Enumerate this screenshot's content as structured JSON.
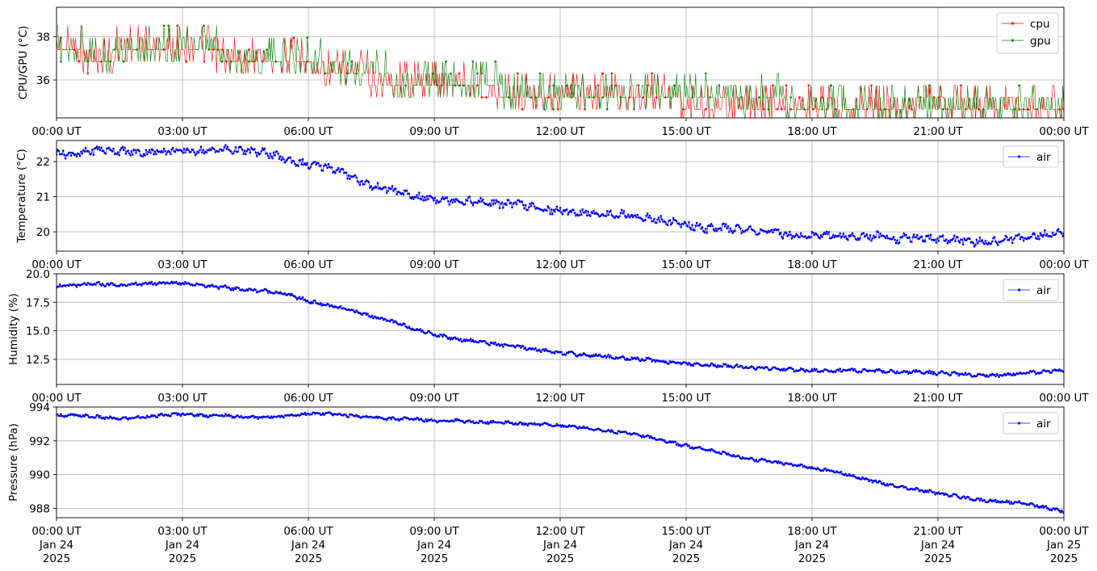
{
  "chart_data": [
    {
      "type": "line",
      "ylabel": "CPU/GPU (°C)",
      "x_ticks": [
        "00:00 UT",
        "03:00 UT",
        "06:00 UT",
        "09:00 UT",
        "12:00 UT",
        "15:00 UT",
        "18:00 UT",
        "21:00 UT",
        "00:00 UT"
      ],
      "y_ticks": [
        "36",
        "38"
      ],
      "y_tick_values": [
        36,
        38
      ],
      "ylim": [
        34.25,
        39.35
      ],
      "xlim_hours": [
        0,
        24
      ],
      "grid": true,
      "legend": "top-right",
      "series": [
        {
          "name": "cpu",
          "color": "#ff0000",
          "x_hours": [
            0,
            0.5,
            1,
            1.5,
            2,
            2.5,
            3,
            3.5,
            4,
            4.5,
            5,
            5.5,
            6,
            6.5,
            7,
            7.5,
            8,
            8.5,
            9,
            9.5,
            10,
            10.5,
            11,
            11.5,
            12,
            12.5,
            13,
            13.5,
            14,
            14.5,
            15,
            15.5,
            16,
            16.5,
            17,
            17.5,
            18,
            18.5,
            19,
            19.5,
            20,
            20.5,
            21,
            21.5,
            22,
            22.5,
            23,
            23.5,
            24
          ],
          "values": [
            37.2,
            37.2,
            36.8,
            37.2,
            37.2,
            37.2,
            37.3,
            37.2,
            37.0,
            36.9,
            36.9,
            36.8,
            36.6,
            36.4,
            36.2,
            36.0,
            35.9,
            35.8,
            35.6,
            35.5,
            35.5,
            35.4,
            35.3,
            35.2,
            35.2,
            35.1,
            35.0,
            35.0,
            35.0,
            35.0,
            34.9,
            34.9,
            34.9,
            34.9,
            34.9,
            34.9,
            34.8,
            34.8,
            34.9,
            34.8,
            34.8,
            34.8,
            34.9,
            34.8,
            34.8,
            34.9,
            34.8,
            34.8,
            34.8
          ]
        },
        {
          "name": "gpu",
          "color": "#008000",
          "x_hours": [
            0,
            0.5,
            1,
            1.5,
            2,
            2.5,
            3,
            3.5,
            4,
            4.5,
            5,
            5.5,
            6,
            6.5,
            7,
            7.5,
            8,
            8.5,
            9,
            9.5,
            10,
            10.5,
            11,
            11.5,
            12,
            12.5,
            13,
            13.5,
            14,
            14.5,
            15,
            15.5,
            16,
            16.5,
            17,
            17.5,
            18,
            18.5,
            19,
            19.5,
            20,
            20.5,
            21,
            21.5,
            22,
            22.5,
            23,
            23.5,
            24
          ],
          "values": [
            37.3,
            37.2,
            37.0,
            37.2,
            37.3,
            37.2,
            37.3,
            37.2,
            37.1,
            37.0,
            37.0,
            36.9,
            36.8,
            36.5,
            36.4,
            36.2,
            36.0,
            35.9,
            35.8,
            35.6,
            35.5,
            35.5,
            35.4,
            35.4,
            35.3,
            35.2,
            35.2,
            35.1,
            35.1,
            35.0,
            35.0,
            35.0,
            35.0,
            34.9,
            35.0,
            34.9,
            34.9,
            34.9,
            34.9,
            34.9,
            34.9,
            34.9,
            34.9,
            34.9,
            34.9,
            34.9,
            34.9,
            34.9,
            34.9
          ]
        }
      ]
    },
    {
      "type": "line",
      "ylabel": "Temperature (°C)",
      "x_ticks": [
        "00:00 UT",
        "03:00 UT",
        "06:00 UT",
        "09:00 UT",
        "12:00 UT",
        "15:00 UT",
        "18:00 UT",
        "21:00 UT",
        "00:00 UT"
      ],
      "y_ticks": [
        "20",
        "21",
        "22"
      ],
      "y_tick_values": [
        20,
        21,
        22
      ],
      "ylim": [
        19.45,
        22.6
      ],
      "xlim_hours": [
        0,
        24
      ],
      "grid": true,
      "legend": "top-right",
      "series": [
        {
          "name": "air",
          "color": "#0000ff",
          "x_hours": [
            0,
            0.5,
            1,
            1.5,
            2,
            2.5,
            3,
            3.5,
            4,
            4.5,
            5,
            5.5,
            6,
            6.5,
            7,
            7.5,
            8,
            8.5,
            9,
            9.5,
            10,
            10.5,
            11,
            11.5,
            12,
            12.5,
            13,
            13.5,
            14,
            14.5,
            15,
            15.5,
            16,
            16.5,
            17,
            17.5,
            18,
            18.5,
            19,
            19.5,
            20,
            20.5,
            21,
            21.5,
            22,
            22.5,
            23,
            23.5,
            24
          ],
          "values": [
            22.25,
            22.2,
            22.35,
            22.3,
            22.25,
            22.3,
            22.3,
            22.3,
            22.35,
            22.3,
            22.25,
            22.05,
            21.9,
            21.85,
            21.6,
            21.3,
            21.2,
            21.0,
            20.95,
            20.9,
            20.85,
            20.8,
            20.8,
            20.65,
            20.6,
            20.55,
            20.5,
            20.5,
            20.4,
            20.3,
            20.2,
            20.1,
            20.1,
            20.05,
            20.0,
            19.9,
            19.9,
            19.9,
            19.85,
            19.9,
            19.8,
            19.85,
            19.8,
            19.75,
            19.7,
            19.75,
            19.85,
            19.9,
            20.0
          ]
        }
      ]
    },
    {
      "type": "line",
      "ylabel": "Humidity (%)",
      "x_ticks": [
        "00:00 UT",
        "03:00 UT",
        "06:00 UT",
        "09:00 UT",
        "12:00 UT",
        "15:00 UT",
        "18:00 UT",
        "21:00 UT",
        "00:00 UT"
      ],
      "y_ticks": [
        "12.5",
        "15.0",
        "17.5",
        "20.0"
      ],
      "y_tick_values": [
        12.5,
        15.0,
        17.5,
        20.0
      ],
      "ylim": [
        10.3,
        20.0
      ],
      "xlim_hours": [
        0,
        24
      ],
      "grid": true,
      "legend": "top-right",
      "series": [
        {
          "name": "air",
          "color": "#0000ff",
          "x_hours": [
            0,
            0.5,
            1,
            1.5,
            2,
            2.5,
            3,
            3.5,
            4,
            4.5,
            5,
            5.5,
            6,
            6.5,
            7,
            7.5,
            8,
            8.5,
            9,
            9.5,
            10,
            10.5,
            11,
            11.5,
            12,
            12.5,
            13,
            13.5,
            14,
            14.5,
            15,
            15.5,
            16,
            16.5,
            17,
            17.5,
            18,
            18.5,
            19,
            19.5,
            20,
            20.5,
            21,
            21.5,
            22,
            22.5,
            23,
            23.5,
            24
          ],
          "values": [
            18.9,
            19.0,
            19.1,
            19.0,
            19.1,
            19.2,
            19.2,
            19.0,
            18.8,
            18.6,
            18.5,
            18.2,
            17.6,
            17.2,
            16.8,
            16.3,
            15.8,
            15.2,
            14.7,
            14.3,
            14.1,
            13.8,
            13.6,
            13.3,
            13.1,
            12.9,
            12.8,
            12.6,
            12.5,
            12.3,
            12.1,
            12.0,
            11.9,
            11.8,
            11.7,
            11.6,
            11.5,
            11.5,
            11.5,
            11.5,
            11.4,
            11.4,
            11.3,
            11.2,
            11.1,
            11.1,
            11.3,
            11.4,
            11.5
          ]
        }
      ]
    },
    {
      "type": "line",
      "ylabel": "Pressure (hPa)",
      "x_ticks": [
        "00:00 UT",
        "03:00 UT",
        "06:00 UT",
        "09:00 UT",
        "12:00 UT",
        "15:00 UT",
        "18:00 UT",
        "21:00 UT",
        "00:00 UT"
      ],
      "x_ticks_sub": [
        "Jan 24",
        "Jan 24",
        "Jan 24",
        "Jan 24",
        "Jan 24",
        "Jan 24",
        "Jan 24",
        "Jan 24",
        "Jan 25"
      ],
      "x_ticks_year": [
        "2025",
        "2025",
        "2025",
        "2025",
        "2025",
        "2025",
        "2025",
        "2025",
        "2025"
      ],
      "y_ticks": [
        "988",
        "990",
        "992",
        "994"
      ],
      "y_tick_values": [
        988,
        990,
        992,
        994
      ],
      "ylim": [
        987.45,
        994.0
      ],
      "xlim_hours": [
        0,
        24
      ],
      "grid": true,
      "legend": "top-right",
      "series": [
        {
          "name": "air",
          "color": "#0000ff",
          "x_hours": [
            0,
            0.5,
            1,
            1.5,
            2,
            2.5,
            3,
            3.5,
            4,
            4.5,
            5,
            5.5,
            6,
            6.5,
            7,
            7.5,
            8,
            8.5,
            9,
            9.5,
            10,
            10.5,
            11,
            11.5,
            12,
            12.5,
            13,
            13.5,
            14,
            14.5,
            15,
            15.5,
            16,
            16.5,
            17,
            17.5,
            18,
            18.5,
            19,
            19.5,
            20,
            20.5,
            21,
            21.5,
            22,
            22.5,
            23,
            23.5,
            24
          ],
          "values": [
            993.5,
            993.5,
            993.4,
            993.3,
            993.4,
            993.5,
            993.6,
            993.5,
            993.5,
            993.4,
            993.4,
            993.5,
            993.6,
            993.6,
            993.5,
            993.4,
            993.3,
            993.3,
            993.2,
            993.2,
            993.1,
            993.1,
            993.0,
            993.0,
            992.9,
            992.8,
            992.6,
            992.5,
            992.3,
            992.0,
            991.7,
            991.5,
            991.2,
            990.9,
            990.8,
            990.6,
            990.4,
            990.2,
            989.9,
            989.6,
            989.3,
            989.1,
            988.9,
            988.7,
            988.5,
            988.4,
            988.3,
            988.1,
            987.8
          ]
        }
      ]
    }
  ]
}
